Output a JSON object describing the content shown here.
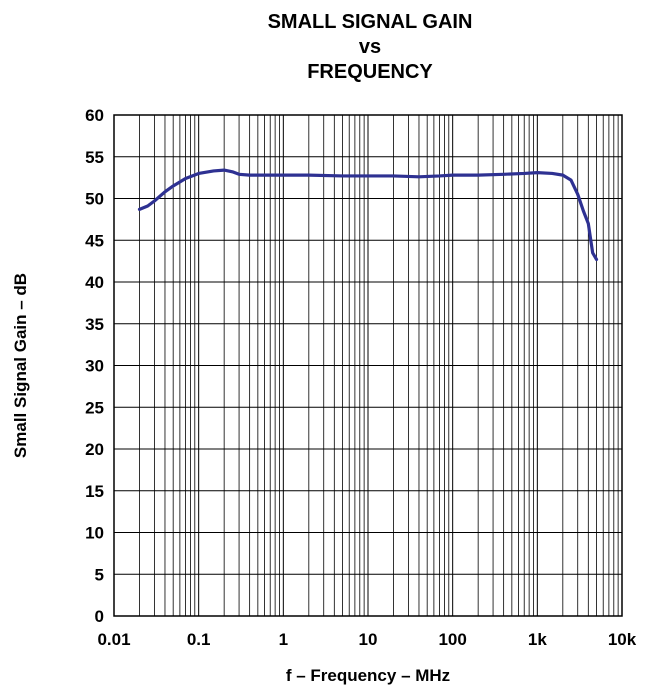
{
  "chart_data": {
    "type": "line",
    "title_lines": [
      "SMALL SIGNAL GAIN",
      "vs",
      "FREQUENCY"
    ],
    "xlabel": "f – Frequency – MHz",
    "ylabel": "Small Signal Gain – dB",
    "x_scale": "log",
    "xlim": [
      0.01,
      10000
    ],
    "ylim": [
      0,
      60
    ],
    "x_ticks": [
      0.01,
      0.1,
      1,
      10,
      100,
      1000,
      10000
    ],
    "x_tick_labels": [
      "0.01",
      "0.1",
      "1",
      "10",
      "100",
      "1k",
      "10k"
    ],
    "y_ticks": [
      0,
      5,
      10,
      15,
      20,
      25,
      30,
      35,
      40,
      45,
      50,
      55,
      60
    ],
    "y_tick_labels": [
      "0",
      "5",
      "10",
      "15",
      "20",
      "25",
      "30",
      "35",
      "40",
      "45",
      "50",
      "55",
      "60"
    ],
    "grid": true,
    "series_color": "#2e3192",
    "series": [
      {
        "x": [
          0.02,
          0.025,
          0.03,
          0.04,
          0.05,
          0.07,
          0.1,
          0.15,
          0.2,
          0.25,
          0.3,
          0.4,
          0.6,
          1,
          2,
          5,
          10,
          20,
          40,
          70,
          100,
          200,
          400,
          700,
          1000,
          1500,
          2000,
          2500,
          3000,
          3500,
          4000,
          4500,
          5000
        ],
        "y": [
          48.7,
          49.1,
          49.7,
          50.8,
          51.5,
          52.4,
          53.0,
          53.3,
          53.4,
          53.2,
          52.9,
          52.8,
          52.8,
          52.8,
          52.8,
          52.7,
          52.7,
          52.7,
          52.6,
          52.7,
          52.8,
          52.8,
          52.9,
          53.0,
          53.1,
          53.0,
          52.8,
          52.2,
          50.5,
          48.5,
          47.0,
          43.5,
          42.7
        ]
      }
    ]
  }
}
